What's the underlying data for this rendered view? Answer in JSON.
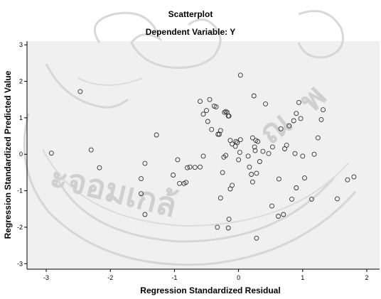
{
  "chart_data": {
    "type": "scatter",
    "title": "Scatterplot",
    "subtitle": "Dependent Variable: Y",
    "xlabel": "Regression Standardized Residual",
    "ylabel": "Regression Standardized Predicted Value",
    "xlim": [
      -3.3,
      2.2
    ],
    "ylim": [
      -3.15,
      3.1
    ],
    "xticks": [
      -3,
      -2,
      -1,
      0,
      1,
      2
    ],
    "yticks": [
      -3,
      -2,
      -1,
      0,
      1,
      2,
      3
    ],
    "grid": false,
    "colors": {
      "plot_bg": "#f0f0f0",
      "marker_stroke": "#333333",
      "axis": "#000000"
    },
    "x": [
      -2.47,
      0.03,
      -2.92,
      -2.3,
      -2.17,
      -1.52,
      -1.52,
      -1.46,
      -1.28,
      -1.02,
      -0.95,
      -0.85,
      -0.8,
      -0.76,
      -0.68,
      -0.6,
      -0.55,
      -0.5,
      -0.48,
      -0.45,
      -0.42,
      -0.38,
      -0.35,
      -0.32,
      -0.3,
      -0.28,
      -0.22,
      -0.2,
      -0.18,
      -0.16,
      -0.15,
      -0.13,
      -0.1,
      -0.05,
      -0.04,
      -0.02,
      0.0,
      0.02,
      0.03,
      0.15,
      0.17,
      0.2,
      0.22,
      0.24,
      0.25,
      0.26,
      0.27,
      0.28,
      0.3,
      0.33,
      0.38,
      0.42,
      0.47,
      0.52,
      0.62,
      0.63,
      0.66,
      0.7,
      0.72,
      0.75,
      0.79,
      0.83,
      0.86,
      0.88,
      0.9,
      0.94,
      1.0,
      1.03,
      1.14,
      1.18,
      1.24,
      1.29,
      1.32,
      1.54,
      1.7,
      1.8,
      -1.46,
      -0.6,
      -0.55,
      -0.25,
      -0.23,
      -0.2,
      -0.16,
      -0.1,
      -0.13
    ],
    "y": [
      1.72,
      2.17,
      0.03,
      0.12,
      -0.37,
      -0.67,
      -1.08,
      -1.65,
      0.53,
      -0.57,
      -0.15,
      -0.8,
      -0.37,
      -0.35,
      -0.36,
      1.45,
      1.1,
      1.2,
      0.9,
      1.5,
      0.68,
      1.32,
      1.3,
      0.55,
      0.55,
      0.65,
      1.15,
      1.17,
      1.15,
      1.05,
      1.05,
      0.38,
      0.28,
      0.22,
      0.35,
      0.32,
      -0.15,
      0.05,
      0.4,
      -0.05,
      -0.35,
      -0.55,
      0.45,
      1.6,
      0.2,
      0.1,
      0.38,
      -0.52,
      0.35,
      -0.2,
      0.08,
      1.38,
      0.02,
      -1.42,
      -1.7,
      -0.68,
      0.7,
      -1.65,
      0.15,
      0.25,
      0.78,
      -1.23,
      0.92,
      0.02,
      1.12,
      1.42,
      -0.05,
      -0.65,
      -1.23,
      0.0,
      0.45,
      0.95,
      1.22,
      -1.22,
      -0.7,
      -0.62,
      -0.25,
      -0.35,
      -0.05,
      -0.5,
      -0.08,
      -0.03,
      -2.02,
      -0.85,
      -0.95
    ],
    "extra_points": [
      {
        "x": -0.33,
        "y": -2.0
      },
      {
        "x": -0.15,
        "y": -1.78
      },
      {
        "x": 0.28,
        "y": -2.3
      },
      {
        "x": -0.28,
        "y": -1.2
      },
      {
        "x": 0.22,
        "y": -0.76
      },
      {
        "x": -0.92,
        "y": -0.8
      },
      {
        "x": -0.82,
        "y": -0.77
      },
      {
        "x": 0.53,
        "y": 0.2
      },
      {
        "x": 0.9,
        "y": -0.92
      },
      {
        "x": 0.97,
        "y": 0.98
      }
    ]
  }
}
